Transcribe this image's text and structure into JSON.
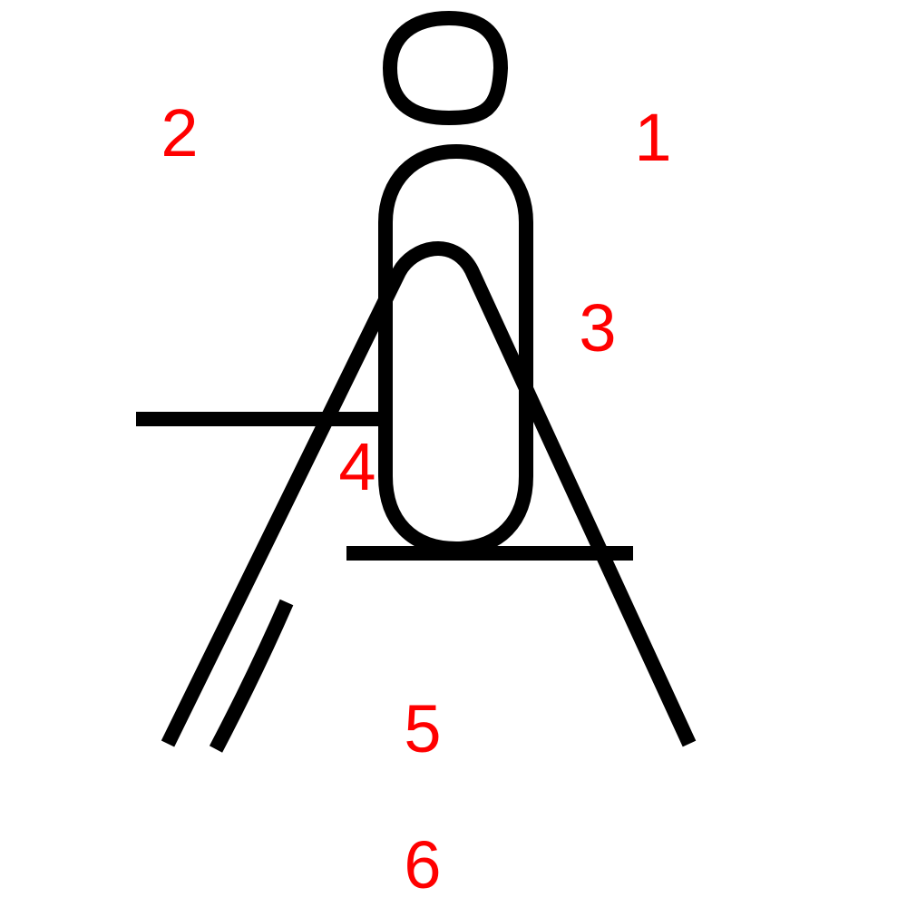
{
  "figure": {
    "stroke_color": "#000000",
    "label_color": "#ff0000",
    "labels": {
      "one": "1",
      "two": "2",
      "three": "3",
      "four": "4",
      "five": "5",
      "six": "6"
    }
  }
}
